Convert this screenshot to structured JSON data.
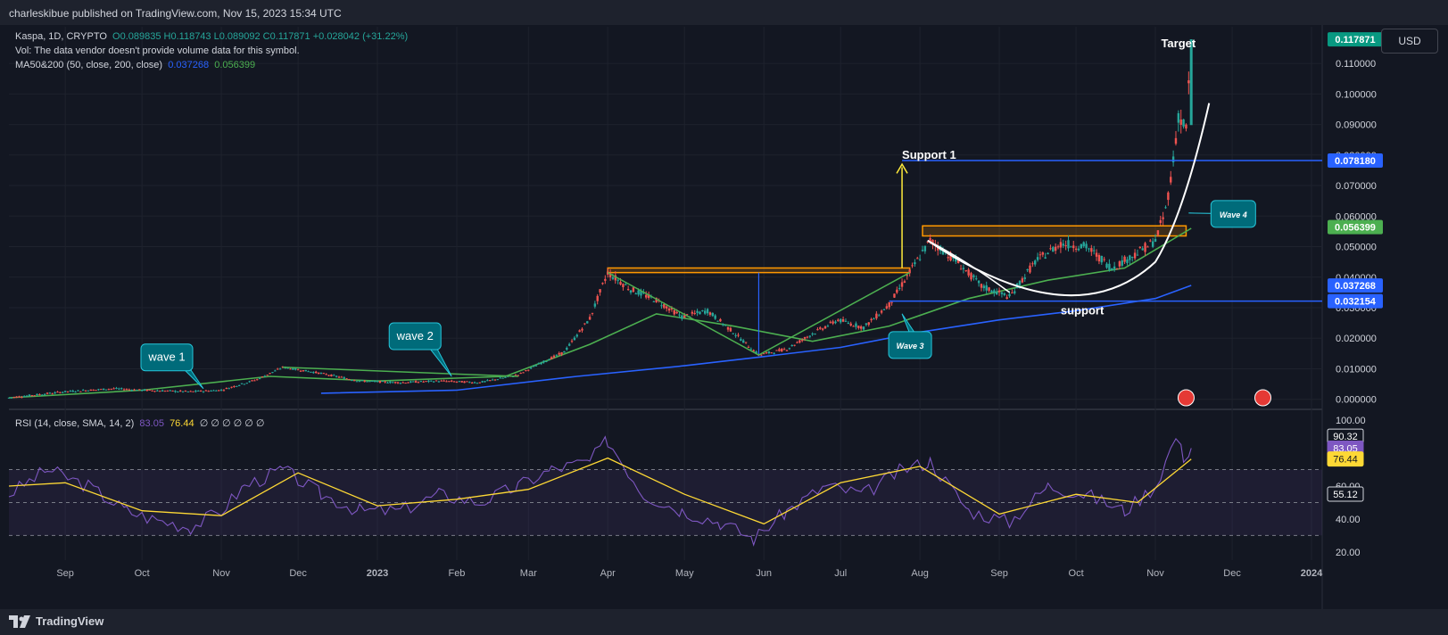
{
  "header": {
    "publisher": "charleskibue published on TradingView.com, Nov 15, 2023 15:34 UTC"
  },
  "legend": {
    "symbol": "Kaspa, 1D, CRYPTO",
    "ohlc": "O0.089835  H0.118743  L0.089092  C0.117871  +0.028042 (+31.22%)",
    "vol_note": "Vol: The data vendor doesn't provide volume data for this symbol.",
    "ma_label": "MA50&200 (50, close, 200, close)",
    "ma50": "0.037268",
    "ma200": "0.056399",
    "rsi_label": "RSI (14, close, SMA, 14, 2)",
    "rsi_value": "83.05",
    "rsi_sma": "76.44",
    "rsi_extra": "∅ ∅ ∅ ∅ ∅ ∅"
  },
  "currency_button": "USD",
  "footer": {
    "brand": "TradingView"
  },
  "colors": {
    "up": "#26a69a",
    "down": "#ef5350",
    "ma_green": "#4caf50",
    "ma_blue": "#2962ff",
    "rsi": "#7e57c2",
    "rsi_sma": "#fdd835",
    "fib": "#ff9800"
  },
  "chart_data": {
    "type": "candlestick",
    "title": "Kaspa, 1D, CRYPTO",
    "x_ticks": [
      "Sep",
      "Oct",
      "Nov",
      "Dec",
      "2023",
      "Feb",
      "Mar",
      "Apr",
      "May",
      "Jun",
      "Jul",
      "Aug",
      "Sep",
      "Oct",
      "Nov",
      "Dec",
      "2024"
    ],
    "y_ticks": [
      "0.000000",
      "0.010000",
      "0.020000",
      "0.030000",
      "0.040000",
      "0.050000",
      "0.060000",
      "0.070000",
      "0.080000",
      "0.090000",
      "0.100000",
      "0.110000"
    ],
    "ylim": [
      -0.003,
      0.122
    ],
    "price_path": [
      [
        "2022-08-10",
        0.0005
      ],
      [
        "2022-09-01",
        0.0025
      ],
      [
        "2022-09-20",
        0.0035
      ],
      [
        "2022-10-01",
        0.003
      ],
      [
        "2022-10-20",
        0.0025
      ],
      [
        "2022-11-01",
        0.003
      ],
      [
        "2022-11-15",
        0.0065
      ],
      [
        "2022-11-25",
        0.0105
      ],
      [
        "2022-12-10",
        0.0085
      ],
      [
        "2022-12-25",
        0.006
      ],
      [
        "2023-01-10",
        0.0055
      ],
      [
        "2023-01-25",
        0.006
      ],
      [
        "2023-02-10",
        0.0055
      ],
      [
        "2023-02-25",
        0.008
      ],
      [
        "2023-03-05",
        0.0115
      ],
      [
        "2023-03-15",
        0.0155
      ],
      [
        "2023-03-25",
        0.0265
      ],
      [
        "2023-04-01",
        0.0415
      ],
      [
        "2023-04-10",
        0.036
      ],
      [
        "2023-04-20",
        0.0325
      ],
      [
        "2023-04-30",
        0.027
      ],
      [
        "2023-05-10",
        0.029
      ],
      [
        "2023-05-20",
        0.022
      ],
      [
        "2023-05-30",
        0.0145
      ],
      [
        "2023-06-10",
        0.0165
      ],
      [
        "2023-06-20",
        0.0215
      ],
      [
        "2023-06-30",
        0.026
      ],
      [
        "2023-07-10",
        0.0235
      ],
      [
        "2023-07-20",
        0.031
      ],
      [
        "2023-07-31",
        0.0455
      ],
      [
        "2023-08-05",
        0.052
      ],
      [
        "2023-08-15",
        0.0455
      ],
      [
        "2023-08-25",
        0.037
      ],
      [
        "2023-09-05",
        0.0335
      ],
      [
        "2023-09-15",
        0.045
      ],
      [
        "2023-09-25",
        0.051
      ],
      [
        "2023-10-05",
        0.05
      ],
      [
        "2023-10-15",
        0.043
      ],
      [
        "2023-10-25",
        0.048
      ],
      [
        "2023-11-01",
        0.052
      ],
      [
        "2023-11-05",
        0.062
      ],
      [
        "2023-11-08",
        0.078
      ],
      [
        "2023-11-10",
        0.093
      ],
      [
        "2023-11-13",
        0.0885
      ],
      [
        "2023-11-15",
        0.1179
      ]
    ],
    "moving_averages": [
      {
        "name": "MA50",
        "value": 0.037268,
        "color": "#2962ff"
      },
      {
        "name": "MA200",
        "value": 0.056399,
        "color": "#4caf50"
      }
    ],
    "price_labels": [
      {
        "value": 0.117871,
        "text": "0.117871",
        "color": "#089981"
      },
      {
        "value": 0.07818,
        "text": "0.078180",
        "color": "#2962ff"
      },
      {
        "value": 0.056399,
        "text": "0.056399",
        "color": "#4caf50"
      },
      {
        "value": 0.037268,
        "text": "0.037268",
        "color": "#2962ff"
      },
      {
        "value": 0.032154,
        "text": "0.032154",
        "color": "#2962ff"
      }
    ],
    "horizontal_lines": [
      {
        "value": 0.07818,
        "from": "2023-07-25",
        "color": "#2962ff"
      },
      {
        "value": 0.032154,
        "from": "2023-07-20",
        "color": "#2962ff"
      }
    ],
    "resistance_zones": [
      {
        "from": "2023-04-01",
        "to": "2023-07-28",
        "low": 0.0415,
        "high": 0.043
      },
      {
        "from": "2023-08-02",
        "to": "2023-11-13",
        "low": 0.0535,
        "high": 0.0568
      }
    ],
    "annotations": [
      {
        "text": "wave 1",
        "date": "2022-10-25",
        "value": 0.0035,
        "style": "callout"
      },
      {
        "text": "wave 2",
        "date": "2023-01-30",
        "value": 0.0075,
        "style": "callout"
      },
      {
        "text": "Wave 3",
        "date": "2023-07-25",
        "value": 0.028,
        "style": "callout"
      },
      {
        "text": "Wave 4",
        "date": "2023-11-14",
        "value": 0.061,
        "style": "callout"
      },
      {
        "text": "Support 1",
        "date": "2023-07-25",
        "value": 0.08,
        "style": "label"
      },
      {
        "text": "support",
        "date": "2023-09-25",
        "value": 0.029,
        "style": "label"
      },
      {
        "text": "Target",
        "date": "2023-11-10",
        "value": 0.1165,
        "style": "label"
      }
    ],
    "rsi": {
      "name": "RSI (14, close, SMA, 14, 2)",
      "y_ticks": [
        "20.00",
        "40.00",
        "60.00",
        "100.00"
      ],
      "ylim": [
        15,
        105
      ],
      "levels": [
        70,
        50,
        30
      ],
      "value": 83.05,
      "sma": 76.44,
      "labels": [
        {
          "value": 90.32,
          "text": "90.32"
        },
        {
          "value": 83.05,
          "text": "83.05"
        },
        {
          "value": 76.44,
          "text": "76.44"
        },
        {
          "value": 55.12,
          "text": "55.12"
        }
      ],
      "path": [
        [
          "2022-08-10",
          55
        ],
        [
          "2022-08-25",
          70
        ],
        [
          "2022-09-10",
          60
        ],
        [
          "2022-09-25",
          45
        ],
        [
          "2022-10-05",
          40
        ],
        [
          "2022-10-20",
          35
        ],
        [
          "2022-11-01",
          45
        ],
        [
          "2022-11-10",
          60
        ],
        [
          "2022-11-25",
          70
        ],
        [
          "2022-12-10",
          55
        ],
        [
          "2022-12-25",
          45
        ],
        [
          "2023-01-10",
          45
        ],
        [
          "2023-01-25",
          55
        ],
        [
          "2023-02-10",
          50
        ],
        [
          "2023-02-25",
          60
        ],
        [
          "2023-03-10",
          70
        ],
        [
          "2023-03-25",
          75
        ],
        [
          "2023-04-01",
          88
        ],
        [
          "2023-04-15",
          55
        ],
        [
          "2023-04-30",
          45
        ],
        [
          "2023-05-15",
          38
        ],
        [
          "2023-05-28",
          28
        ],
        [
          "2023-06-10",
          45
        ],
        [
          "2023-06-25",
          60
        ],
        [
          "2023-07-10",
          55
        ],
        [
          "2023-07-25",
          70
        ],
        [
          "2023-08-05",
          75
        ],
        [
          "2023-08-20",
          45
        ],
        [
          "2023-09-05",
          38
        ],
        [
          "2023-09-20",
          60
        ],
        [
          "2023-10-05",
          55
        ],
        [
          "2023-10-20",
          45
        ],
        [
          "2023-11-01",
          60
        ],
        [
          "2023-11-09",
          90
        ],
        [
          "2023-11-12",
          78
        ],
        [
          "2023-11-15",
          83
        ]
      ],
      "sma_path": [
        [
          "2022-08-10",
          60
        ],
        [
          "2022-09-01",
          62
        ],
        [
          "2022-10-01",
          45
        ],
        [
          "2022-11-01",
          42
        ],
        [
          "2022-12-01",
          68
        ],
        [
          "2023-01-01",
          48
        ],
        [
          "2023-02-01",
          52
        ],
        [
          "2023-03-01",
          58
        ],
        [
          "2023-04-01",
          77
        ],
        [
          "2023-05-01",
          55
        ],
        [
          "2023-06-01",
          37
        ],
        [
          "2023-07-01",
          62
        ],
        [
          "2023-08-01",
          72
        ],
        [
          "2023-09-01",
          43
        ],
        [
          "2023-10-01",
          55
        ],
        [
          "2023-10-25",
          50
        ],
        [
          "2023-11-15",
          76.44
        ]
      ]
    }
  }
}
